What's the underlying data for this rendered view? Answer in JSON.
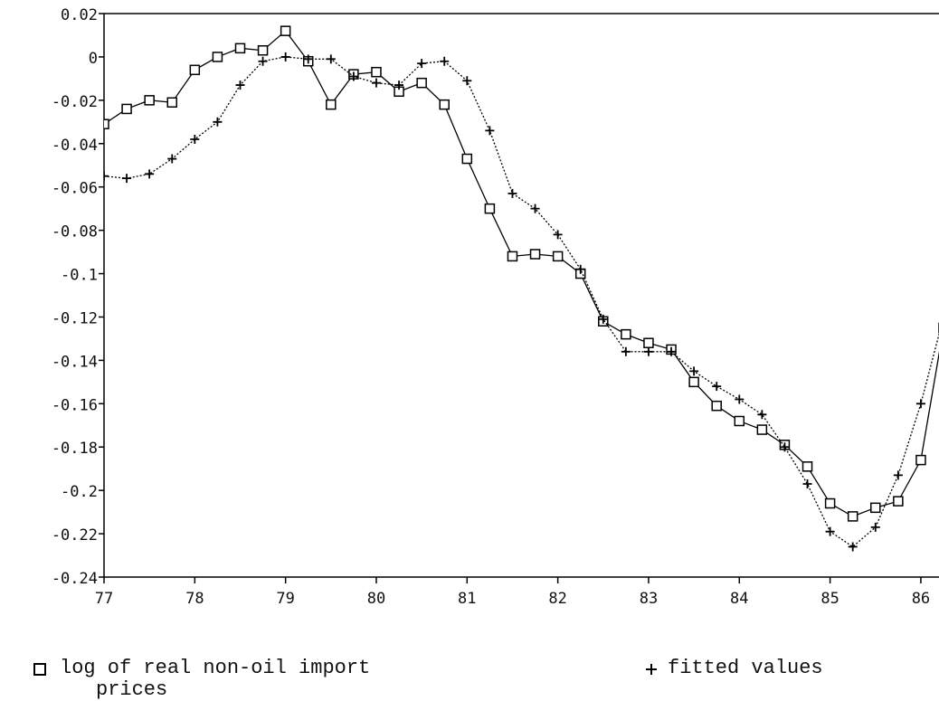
{
  "chart_data": {
    "type": "line",
    "x": [
      77,
      77.25,
      77.5,
      77.75,
      78,
      78.25,
      78.5,
      78.75,
      79,
      79.25,
      79.5,
      79.75,
      80,
      80.25,
      80.5,
      80.75,
      81,
      81.25,
      81.5,
      81.75,
      82,
      82.25,
      82.5,
      82.75,
      83,
      83.25,
      83.5,
      83.75,
      84,
      84.25,
      84.5,
      84.75,
      85,
      85.25,
      85.5,
      85.75,
      86,
      86.25
    ],
    "series": [
      {
        "name": "log of real non-oil import prices",
        "color": "#000000",
        "marker": "square",
        "values": [
          -0.031,
          -0.024,
          -0.02,
          -0.021,
          -0.006,
          0.0,
          0.004,
          0.003,
          0.012,
          -0.002,
          -0.022,
          -0.008,
          -0.007,
          -0.016,
          -0.012,
          -0.022,
          -0.047,
          -0.07,
          -0.092,
          -0.091,
          -0.092,
          -0.1,
          -0.122,
          -0.128,
          -0.132,
          -0.135,
          -0.15,
          -0.161,
          -0.168,
          -0.172,
          -0.179,
          -0.189,
          -0.206,
          -0.212,
          -0.208,
          -0.205,
          -0.186,
          -0.125
        ]
      },
      {
        "name": "fitted values",
        "color": "#000000",
        "marker": "plus",
        "values": [
          -0.055,
          -0.056,
          -0.054,
          -0.047,
          -0.038,
          -0.03,
          -0.013,
          -0.002,
          0.0,
          -0.001,
          -0.001,
          -0.009,
          -0.012,
          -0.013,
          -0.003,
          -0.002,
          -0.011,
          -0.034,
          -0.063,
          -0.07,
          -0.082,
          -0.098,
          -0.121,
          -0.136,
          -0.136,
          -0.136,
          -0.145,
          -0.152,
          -0.158,
          -0.165,
          -0.18,
          -0.197,
          -0.219,
          -0.226,
          -0.217,
          -0.193,
          -0.16,
          -0.12
        ]
      }
    ],
    "xlim": [
      77,
      86.2
    ],
    "xticks": [
      77,
      78,
      79,
      80,
      81,
      82,
      83,
      84,
      85,
      86
    ],
    "ylim": [
      -0.24,
      0.02
    ],
    "yticks": [
      {
        "value": 0.02,
        "label": "0.02"
      },
      0,
      {
        "value": -0.02,
        "label": "-0.02"
      },
      {
        "value": -0.04,
        "label": "-0.04"
      },
      {
        "value": -0.06,
        "label": "-0.06"
      },
      {
        "value": -0.08,
        "label": "-0.08"
      },
      {
        "value": -0.1,
        "label": "-0.1"
      },
      {
        "value": -0.12,
        "label": "-0.12"
      },
      {
        "value": -0.14,
        "label": "-0.14"
      },
      {
        "value": -0.16,
        "label": "-0.16"
      },
      {
        "value": -0.18,
        "label": "-0.18"
      },
      {
        "value": -0.2,
        "label": "-0.2"
      },
      {
        "value": -0.22,
        "label": "-0.22"
      },
      {
        "value": -0.24,
        "label": "-0.24"
      }
    ]
  }
}
